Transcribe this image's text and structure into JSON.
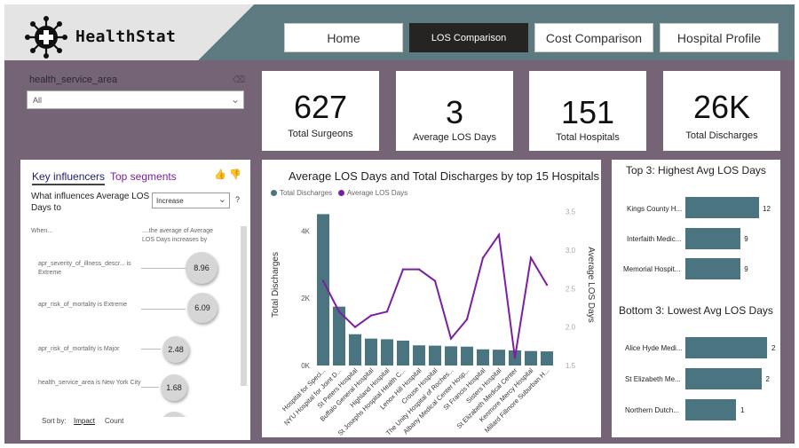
{
  "app": {
    "name": "HealthStat"
  },
  "nav": {
    "items": [
      {
        "label": "Home",
        "active": false
      },
      {
        "label": "LOS Comparison",
        "active": true
      },
      {
        "label": "Cost Comparison",
        "active": false
      },
      {
        "label": "Hospital Profile",
        "active": false
      }
    ]
  },
  "filter": {
    "label": "health_service_area",
    "value": "All",
    "eraser_icon": "eraser-icon"
  },
  "kpis": [
    {
      "value": "627",
      "label": "Total Surgeons"
    },
    {
      "value": "3",
      "label": "Average LOS Days"
    },
    {
      "value": "151",
      "label": "Total Hospitals"
    },
    {
      "value": "26K",
      "label": "Total Discharges"
    }
  ],
  "key_influencers": {
    "tabs": [
      "Key influencers",
      "Top segments"
    ],
    "question": "What influences Average LOS Days to",
    "dropdown_value": "Increase",
    "help": "?",
    "col_when": "When...",
    "col_then": "....the average of Average LOS Days increases by",
    "rows": [
      {
        "label": "apr_severity_of_illness_descr... is Extreme",
        "value": "8.96"
      },
      {
        "label": "apr_risk_of_mortality is Extreme",
        "value": "6.09"
      },
      {
        "label": "apr_risk_of_mortality is Major",
        "value": "2.48"
      },
      {
        "label": "health_service_area is New York City",
        "value": "1.68"
      }
    ],
    "sort_label": "Sort by:",
    "sort_options": [
      "Impact",
      "Count"
    ]
  },
  "combo_chart": {
    "title": "Average LOS Days and Total Discharges by top 15 Hospitals",
    "legend": [
      {
        "name": "Total Discharges",
        "color": "#4a7480"
      },
      {
        "name": "Average LOS Days",
        "color": "#7b1fa2"
      }
    ]
  },
  "chart_data": {
    "type": "bar",
    "title": "Average LOS Days and Total Discharges by top 15 Hospitals",
    "xlabel": "",
    "ylabel": "Total Discharges",
    "y2label": "Average LOS Days",
    "ylim": [
      0,
      4800
    ],
    "y2lim": [
      1.5,
      3.6
    ],
    "y_ticks": [
      "0K",
      "2K",
      "4K"
    ],
    "y2_ticks": [
      "1.5",
      "2.0",
      "2.5",
      "3.0",
      "3.5"
    ],
    "categories": [
      "Hospital for Speci...",
      "NYU Hospital for Joint D...",
      "St Peters Hospital",
      "Buffalo General Hospital",
      "Highland Hospital",
      "St Josephs Hospital Health C...",
      "Lenox Hill Hospital",
      "Crouse Hospital",
      "The Unity Hospital of Roches...",
      "Albany Medical Center Hosp...",
      "St Francis Hospital",
      "Sisters Hospital",
      "St Elizabeth Medical Center",
      "Kenmore Mercy Hospital",
      "Millard Fillmore Suburban H..."
    ],
    "series": [
      {
        "name": "Total Discharges",
        "type": "bar",
        "color": "#4a7480",
        "values": [
          4500,
          1750,
          930,
          800,
          780,
          740,
          600,
          590,
          570,
          560,
          480,
          470,
          450,
          430,
          420
        ]
      },
      {
        "name": "Average LOS Days",
        "type": "line",
        "color": "#7b1fa2",
        "values": [
          2.6,
          2.2,
          2.0,
          2.15,
          2.2,
          2.75,
          2.75,
          2.6,
          1.85,
          2.1,
          2.9,
          3.2,
          1.6,
          2.9,
          2.55
        ]
      }
    ],
    "grid": false,
    "legend_position": "top-left"
  },
  "highest": {
    "title": "Top 3: Highest Avg LOS Days",
    "max": 12,
    "items": [
      {
        "label": "Kings County H...",
        "value": 12
      },
      {
        "label": "Interfaith Medic...",
        "value": 9
      },
      {
        "label": "Memorial Hospit...",
        "value": 9
      }
    ]
  },
  "lowest": {
    "title": "Bottom 3: Lowest Avg LOS Days",
    "max": 2,
    "items": [
      {
        "label": "Alice Hyde Medi...",
        "value": 2
      },
      {
        "label": "St Elizabeth Me...",
        "value": 2
      },
      {
        "label": "Northern Dutch...",
        "value": 1
      }
    ],
    "fill_fractions": [
      1.0,
      0.93,
      0.62
    ]
  }
}
